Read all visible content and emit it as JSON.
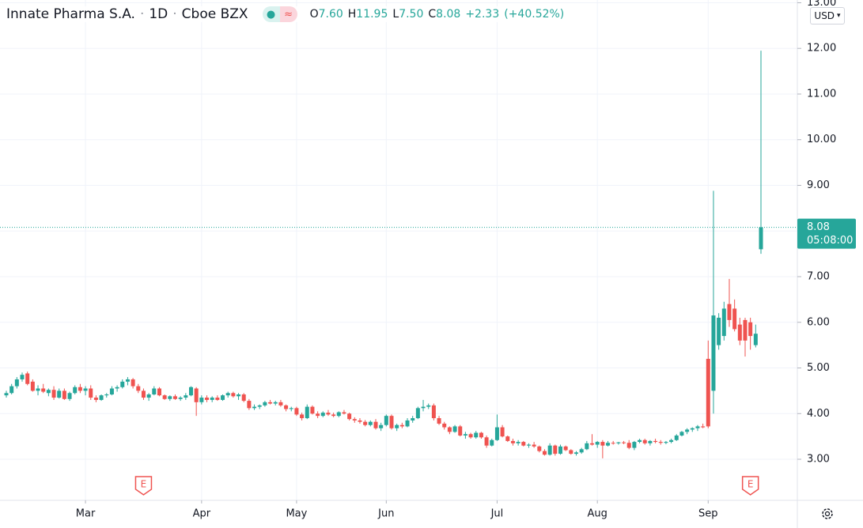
{
  "chart_data": {
    "type": "candlestick",
    "title": "Innate Pharma S.A.",
    "interval": "1D",
    "exchange": "Cboe BZX",
    "legend": [
      {
        "key": "O",
        "value": "7.60"
      },
      {
        "key": "H",
        "value": "11.95"
      },
      {
        "key": "L",
        "value": "7.50"
      },
      {
        "key": "C",
        "value": "8.08"
      }
    ],
    "change": "+2.33",
    "change_pct": "(+40.52%)",
    "currency": "USD",
    "up_color": "#26a69a",
    "down_color": "#ef5350",
    "last_price": {
      "value": 8.08,
      "countdown": "05:08:00"
    },
    "ylim": [
      2.1,
      13.06
    ],
    "yticks": [
      {
        "value": 3,
        "label": "3.00"
      },
      {
        "value": 4,
        "label": "4.00"
      },
      {
        "value": 5,
        "label": "5.00"
      },
      {
        "value": 6,
        "label": "6.00"
      },
      {
        "value": 7,
        "label": "7.00"
      },
      {
        "value": 8,
        "label": "8.00"
      },
      {
        "value": 9,
        "label": "9.00"
      },
      {
        "value": 10,
        "label": "10.00"
      },
      {
        "value": 11,
        "label": "11.00"
      },
      {
        "value": 12,
        "label": "12.00"
      },
      {
        "value": 13,
        "label": "13.00"
      }
    ],
    "xticks": [
      {
        "value": 15,
        "label": "Mar"
      },
      {
        "value": 37,
        "label": "Apr"
      },
      {
        "value": 55,
        "label": "May"
      },
      {
        "value": 72,
        "label": "Jun"
      },
      {
        "value": 93,
        "label": "Jul"
      },
      {
        "value": 112,
        "label": "Aug"
      },
      {
        "value": 133,
        "label": "Sep"
      }
    ],
    "events": [
      {
        "at": 26,
        "label": "E"
      },
      {
        "at": 141,
        "label": "E"
      }
    ],
    "grid": true,
    "candles": [
      [
        4.4,
        4.5,
        4.35,
        4.45
      ],
      [
        4.45,
        4.65,
        4.42,
        4.6
      ],
      [
        4.6,
        4.8,
        4.55,
        4.75
      ],
      [
        4.75,
        4.9,
        4.7,
        4.85
      ],
      [
        4.88,
        4.92,
        4.62,
        4.65
      ],
      [
        4.7,
        4.75,
        4.48,
        4.5
      ],
      [
        4.5,
        4.62,
        4.4,
        4.55
      ],
      [
        4.55,
        4.65,
        4.45,
        4.48
      ],
      [
        4.45,
        4.55,
        4.38,
        4.52
      ],
      [
        4.52,
        4.6,
        4.3,
        4.35
      ],
      [
        4.35,
        4.55,
        4.33,
        4.5
      ],
      [
        4.5,
        4.55,
        4.3,
        4.32
      ],
      [
        4.32,
        4.48,
        4.28,
        4.45
      ],
      [
        4.45,
        4.62,
        4.42,
        4.58
      ],
      [
        4.58,
        4.65,
        4.45,
        4.5
      ],
      [
        4.5,
        4.6,
        4.4,
        4.55
      ],
      [
        4.55,
        4.62,
        4.3,
        4.35
      ],
      [
        4.35,
        4.4,
        4.25,
        4.3
      ],
      [
        4.3,
        4.42,
        4.28,
        4.4
      ],
      [
        4.4,
        4.45,
        4.35,
        4.42
      ],
      [
        4.42,
        4.6,
        4.4,
        4.55
      ],
      [
        4.55,
        4.62,
        4.48,
        4.58
      ],
      [
        4.58,
        4.75,
        4.55,
        4.7
      ],
      [
        4.7,
        4.8,
        4.62,
        4.75
      ],
      [
        4.75,
        4.78,
        4.55,
        4.6
      ],
      [
        4.6,
        4.65,
        4.45,
        4.5
      ],
      [
        4.5,
        4.55,
        4.3,
        4.35
      ],
      [
        4.35,
        4.45,
        4.28,
        4.42
      ],
      [
        4.42,
        4.6,
        4.4,
        4.55
      ],
      [
        4.55,
        4.58,
        4.38,
        4.4
      ],
      [
        4.4,
        4.42,
        4.3,
        4.32
      ],
      [
        4.32,
        4.4,
        4.28,
        4.38
      ],
      [
        4.38,
        4.42,
        4.3,
        4.32
      ],
      [
        4.32,
        4.38,
        4.28,
        4.35
      ],
      [
        4.35,
        4.45,
        4.3,
        4.4
      ],
      [
        4.4,
        4.6,
        4.38,
        4.58
      ],
      [
        4.55,
        4.58,
        3.95,
        4.25
      ],
      [
        4.25,
        4.4,
        4.2,
        4.35
      ],
      [
        4.35,
        4.4,
        4.25,
        4.3
      ],
      [
        4.3,
        4.38,
        4.25,
        4.35
      ],
      [
        4.35,
        4.4,
        4.28,
        4.3
      ],
      [
        4.3,
        4.42,
        4.28,
        4.4
      ],
      [
        4.4,
        4.48,
        4.35,
        4.45
      ],
      [
        4.45,
        4.48,
        4.35,
        4.38
      ],
      [
        4.38,
        4.45,
        4.3,
        4.42
      ],
      [
        4.42,
        4.45,
        4.25,
        4.28
      ],
      [
        4.28,
        4.32,
        4.08,
        4.12
      ],
      [
        4.12,
        4.2,
        4.08,
        4.15
      ],
      [
        4.15,
        4.2,
        4.1,
        4.18
      ],
      [
        4.18,
        4.28,
        4.15,
        4.25
      ],
      [
        4.25,
        4.3,
        4.2,
        4.22
      ],
      [
        4.22,
        4.28,
        4.18,
        4.25
      ],
      [
        4.25,
        4.3,
        4.15,
        4.18
      ],
      [
        4.18,
        4.2,
        4.05,
        4.1
      ],
      [
        4.1,
        4.15,
        4.05,
        4.12
      ],
      [
        4.12,
        4.15,
        3.95,
        3.98
      ],
      [
        3.98,
        4.02,
        3.85,
        3.9
      ],
      [
        3.9,
        4.2,
        3.88,
        4.15
      ],
      [
        4.15,
        4.18,
        3.98,
        4.0
      ],
      [
        4.0,
        4.05,
        3.9,
        3.95
      ],
      [
        3.95,
        4.05,
        3.92,
        4.02
      ],
      [
        4.02,
        4.08,
        3.95,
        3.98
      ],
      [
        3.98,
        4.02,
        3.92,
        3.95
      ],
      [
        3.95,
        4.05,
        3.92,
        4.03
      ],
      [
        4.03,
        4.08,
        3.98,
        4.0
      ],
      [
        4.0,
        4.02,
        3.85,
        3.88
      ],
      [
        3.88,
        3.92,
        3.8,
        3.85
      ],
      [
        3.85,
        3.9,
        3.78,
        3.82
      ],
      [
        3.82,
        3.86,
        3.72,
        3.75
      ],
      [
        3.75,
        3.85,
        3.72,
        3.82
      ],
      [
        3.82,
        3.88,
        3.65,
        3.68
      ],
      [
        3.68,
        3.8,
        3.62,
        3.75
      ],
      [
        3.75,
        3.98,
        3.72,
        3.95
      ],
      [
        3.95,
        3.98,
        3.65,
        3.68
      ],
      [
        3.68,
        3.78,
        3.62,
        3.75
      ],
      [
        3.75,
        3.8,
        3.68,
        3.72
      ],
      [
        3.72,
        3.9,
        3.7,
        3.85
      ],
      [
        3.85,
        3.95,
        3.8,
        3.9
      ],
      [
        3.9,
        4.15,
        3.88,
        4.12
      ],
      [
        4.12,
        4.3,
        4.05,
        4.15
      ],
      [
        4.15,
        4.22,
        4.1,
        4.18
      ],
      [
        4.18,
        4.22,
        3.85,
        3.9
      ],
      [
        3.9,
        3.95,
        3.75,
        3.78
      ],
      [
        3.78,
        3.82,
        3.65,
        3.7
      ],
      [
        3.7,
        3.72,
        3.55,
        3.6
      ],
      [
        3.6,
        3.75,
        3.58,
        3.72
      ],
      [
        3.72,
        3.75,
        3.5,
        3.52
      ],
      [
        3.52,
        3.6,
        3.45,
        3.55
      ],
      [
        3.55,
        3.58,
        3.45,
        3.48
      ],
      [
        3.48,
        3.62,
        3.45,
        3.58
      ],
      [
        3.58,
        3.6,
        3.45,
        3.48
      ],
      [
        3.48,
        3.52,
        3.25,
        3.3
      ],
      [
        3.3,
        3.45,
        3.28,
        3.42
      ],
      [
        3.42,
        3.98,
        3.4,
        3.7
      ],
      [
        3.7,
        3.75,
        3.48,
        3.5
      ],
      [
        3.5,
        3.52,
        3.38,
        3.4
      ],
      [
        3.4,
        3.45,
        3.3,
        3.35
      ],
      [
        3.35,
        3.42,
        3.3,
        3.38
      ],
      [
        3.38,
        3.4,
        3.28,
        3.3
      ],
      [
        3.3,
        3.35,
        3.25,
        3.32
      ],
      [
        3.32,
        3.38,
        3.25,
        3.28
      ],
      [
        3.28,
        3.3,
        3.15,
        3.18
      ],
      [
        3.18,
        3.22,
        3.08,
        3.1
      ],
      [
        3.1,
        3.35,
        3.08,
        3.3
      ],
      [
        3.3,
        3.32,
        3.08,
        3.12
      ],
      [
        3.12,
        3.32,
        3.1,
        3.28
      ],
      [
        3.28,
        3.3,
        3.18,
        3.2
      ],
      [
        3.2,
        3.22,
        3.1,
        3.12
      ],
      [
        3.12,
        3.18,
        3.08,
        3.15
      ],
      [
        3.15,
        3.25,
        3.12,
        3.22
      ],
      [
        3.22,
        3.4,
        3.2,
        3.35
      ],
      [
        3.35,
        3.55,
        3.3,
        3.32
      ],
      [
        3.32,
        3.4,
        3.25,
        3.38
      ],
      [
        3.38,
        3.42,
        3.02,
        3.3
      ],
      [
        3.3,
        3.4,
        3.28,
        3.36
      ],
      [
        3.36,
        3.4,
        3.32,
        3.35
      ],
      [
        3.35,
        3.38,
        3.32,
        3.37
      ],
      [
        3.37,
        3.4,
        3.33,
        3.36
      ],
      [
        3.36,
        3.42,
        3.22,
        3.25
      ],
      [
        3.25,
        3.4,
        3.2,
        3.38
      ],
      [
        3.38,
        3.45,
        3.35,
        3.42
      ],
      [
        3.42,
        3.45,
        3.32,
        3.35
      ],
      [
        3.35,
        3.42,
        3.3,
        3.4
      ],
      [
        3.4,
        3.45,
        3.35,
        3.38
      ],
      [
        3.38,
        3.42,
        3.32,
        3.36
      ],
      [
        3.36,
        3.4,
        3.33,
        3.38
      ],
      [
        3.38,
        3.45,
        3.35,
        3.42
      ],
      [
        3.42,
        3.55,
        3.4,
        3.52
      ],
      [
        3.52,
        3.62,
        3.5,
        3.6
      ],
      [
        3.6,
        3.68,
        3.55,
        3.65
      ],
      [
        3.65,
        3.7,
        3.6,
        3.68
      ],
      [
        3.68,
        3.75,
        3.62,
        3.72
      ],
      [
        3.72,
        3.78,
        3.68,
        3.7
      ],
      [
        5.2,
        5.6,
        3.68,
        3.72
      ],
      [
        4.5,
        8.88,
        4.0,
        6.15
      ],
      [
        5.5,
        6.2,
        5.4,
        6.1
      ],
      [
        5.7,
        6.45,
        5.6,
        6.3
      ],
      [
        6.4,
        6.95,
        5.9,
        6.05
      ],
      [
        6.3,
        6.5,
        5.8,
        5.85
      ],
      [
        5.95,
        6.1,
        5.5,
        5.6
      ],
      [
        6.05,
        6.1,
        5.25,
        5.6
      ],
      [
        6.0,
        6.1,
        5.4,
        5.7
      ],
      [
        5.5,
        5.95,
        5.45,
        5.75
      ],
      [
        7.6,
        11.95,
        7.5,
        8.08
      ]
    ]
  }
}
